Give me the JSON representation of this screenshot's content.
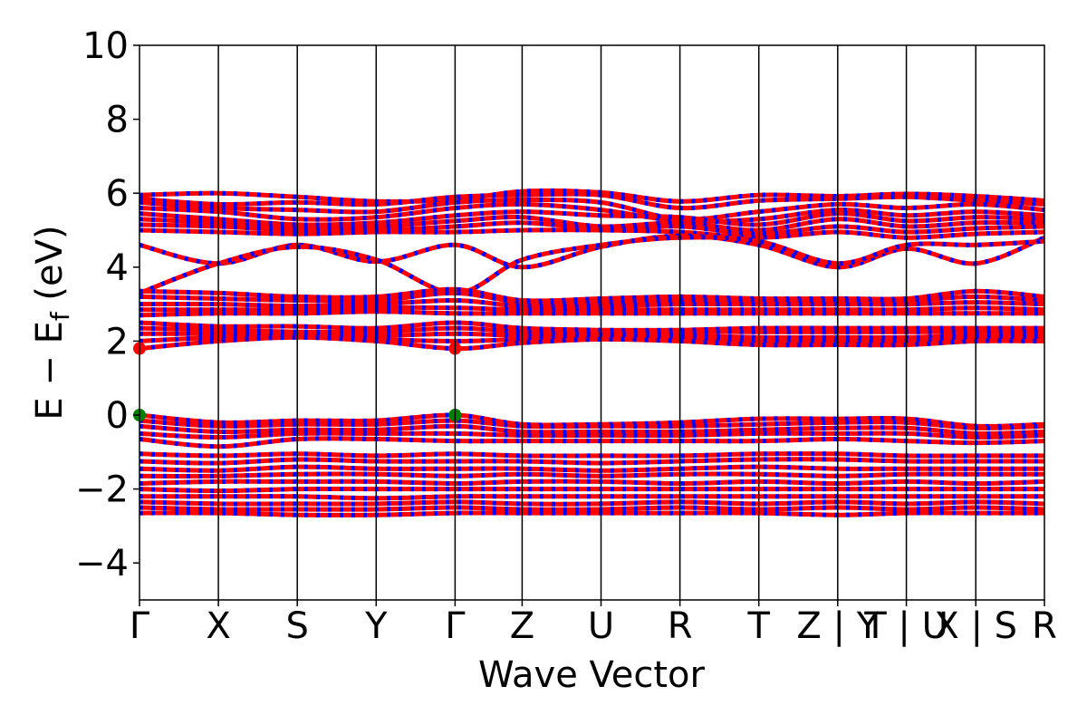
{
  "chart_data": {
    "type": "line",
    "title": "",
    "xlabel": "Wave Vector",
    "ylabel": "E − E",
    "ylabel_sub": "f",
    "ylabel_unit": " (eV)",
    "ylim": [
      -5,
      10
    ],
    "yticks": [
      -4,
      -2,
      0,
      2,
      4,
      6,
      8,
      10
    ],
    "ytick_labels": [
      "−4",
      "−2",
      "0",
      "2",
      "4",
      "6",
      "8",
      "10"
    ],
    "kpath": {
      "positions": [
        0.0,
        1.0,
        2.0,
        3.0,
        4.0,
        4.85,
        5.85,
        6.85,
        7.85,
        8.85,
        9.72,
        10.6,
        11.47
      ],
      "labels": [
        "Γ",
        "X",
        "S",
        "Y",
        "Γ",
        "Z",
        "U",
        "R",
        "T",
        "Z | Y",
        "T | U",
        "X | S",
        "R"
      ]
    },
    "xlim": [
      0.0,
      11.47
    ],
    "grid": false,
    "legend": "none",
    "colors": {
      "spin_up": "#ff0000",
      "spin_down": "#0000ff",
      "vbm_marker": "#008000",
      "cbm_marker": "#ff0000"
    },
    "series_conduction_bands": [
      [
        5.95,
        6.0,
        5.9,
        5.78,
        5.82,
        6.05,
        6.02,
        5.78,
        5.95,
        5.92,
        5.98,
        5.92,
        5.8
      ],
      [
        5.85,
        5.7,
        5.75,
        5.7,
        5.9,
        5.95,
        5.95,
        5.6,
        5.8,
        5.85,
        5.9,
        5.8,
        5.7
      ],
      [
        5.75,
        5.6,
        5.55,
        5.5,
        5.75,
        5.82,
        5.75,
        5.3,
        5.5,
        5.7,
        5.6,
        5.7,
        5.55
      ],
      [
        5.6,
        5.5,
        5.3,
        5.35,
        5.6,
        5.7,
        5.55,
        5.25,
        5.3,
        5.55,
        5.4,
        5.5,
        5.4
      ],
      [
        5.45,
        5.3,
        5.15,
        5.2,
        5.4,
        5.5,
        5.4,
        5.35,
        5.15,
        5.45,
        5.25,
        5.35,
        5.3
      ],
      [
        5.3,
        5.2,
        5.05,
        5.1,
        5.25,
        5.35,
        5.1,
        5.2,
        5.0,
        5.3,
        5.1,
        5.2,
        5.2
      ],
      [
        5.15,
        5.1,
        5.0,
        5.0,
        5.1,
        5.2,
        5.05,
        5.1,
        4.9,
        5.1,
        4.95,
        5.05,
        5.1
      ],
      [
        5.0,
        4.95,
        4.9,
        4.95,
        4.95,
        5.0,
        5.0,
        4.95,
        4.8,
        4.95,
        4.8,
        4.9,
        4.95
      ],
      [
        4.6,
        4.1,
        4.6,
        4.15,
        4.6,
        4.0,
        4.55,
        4.85,
        4.6,
        4.0,
        4.5,
        4.1,
        4.8
      ],
      [
        3.3,
        4.1,
        4.55,
        4.2,
        3.3,
        4.2,
        4.6,
        4.8,
        4.7,
        4.1,
        4.6,
        4.6,
        4.7
      ],
      [
        3.35,
        3.3,
        3.2,
        3.2,
        3.4,
        3.1,
        3.15,
        3.2,
        3.15,
        3.15,
        3.15,
        3.35,
        3.2
      ],
      [
        3.2,
        3.15,
        3.1,
        3.1,
        3.3,
        3.05,
        3.05,
        3.1,
        3.1,
        3.1,
        3.1,
        3.2,
        3.1
      ],
      [
        3.0,
        3.0,
        2.95,
        3.0,
        3.1,
        2.95,
        2.95,
        3.0,
        3.0,
        3.0,
        3.0,
        3.05,
        3.0
      ],
      [
        2.85,
        2.85,
        2.85,
        2.9,
        2.9,
        2.85,
        2.85,
        2.85,
        2.85,
        2.85,
        2.85,
        2.9,
        2.85
      ],
      [
        2.7,
        2.75,
        2.75,
        2.8,
        2.75,
        2.75,
        2.75,
        2.75,
        2.75,
        2.75,
        2.75,
        2.75,
        2.75
      ],
      [
        2.5,
        2.4,
        2.4,
        2.35,
        2.5,
        2.35,
        2.3,
        2.3,
        2.35,
        2.35,
        2.35,
        2.35,
        2.35
      ],
      [
        2.35,
        2.3,
        2.25,
        2.25,
        2.35,
        2.25,
        2.2,
        2.25,
        2.25,
        2.25,
        2.25,
        2.25,
        2.25
      ],
      [
        2.2,
        2.2,
        2.2,
        2.15,
        2.2,
        2.15,
        2.15,
        2.15,
        2.1,
        2.1,
        2.1,
        2.15,
        2.15
      ],
      [
        2.0,
        2.1,
        2.15,
        2.05,
        2.0,
        2.05,
        2.1,
        2.05,
        2.0,
        2.0,
        2.0,
        2.05,
        2.05
      ],
      [
        1.8,
        2.0,
        2.1,
        2.0,
        1.8,
        1.95,
        2.05,
        2.0,
        1.9,
        1.9,
        1.9,
        2.0,
        2.0
      ]
    ],
    "series_valence_bands": [
      [
        0.0,
        -0.2,
        -0.15,
        -0.15,
        0.0,
        -0.25,
        -0.25,
        -0.2,
        -0.1,
        -0.1,
        -0.1,
        -0.3,
        -0.25
      ],
      [
        -0.15,
        -0.3,
        -0.25,
        -0.25,
        -0.15,
        -0.3,
        -0.3,
        -0.3,
        -0.25,
        -0.2,
        -0.2,
        -0.35,
        -0.3
      ],
      [
        -0.3,
        -0.45,
        -0.4,
        -0.4,
        -0.3,
        -0.45,
        -0.45,
        -0.45,
        -0.4,
        -0.35,
        -0.35,
        -0.5,
        -0.45
      ],
      [
        -0.5,
        -0.6,
        -0.5,
        -0.5,
        -0.5,
        -0.55,
        -0.55,
        -0.55,
        -0.5,
        -0.5,
        -0.5,
        -0.6,
        -0.55
      ],
      [
        -0.65,
        -0.85,
        -0.65,
        -0.65,
        -0.7,
        -0.7,
        -0.7,
        -0.7,
        -0.7,
        -0.65,
        -0.7,
        -0.75,
        -0.7
      ],
      [
        -1.05,
        -1.1,
        -1.05,
        -1.1,
        -1.05,
        -1.1,
        -1.1,
        -1.1,
        -1.05,
        -1.05,
        -1.1,
        -1.1,
        -1.1
      ],
      [
        -1.25,
        -1.3,
        -1.2,
        -1.25,
        -1.25,
        -1.25,
        -1.3,
        -1.25,
        -1.2,
        -1.2,
        -1.25,
        -1.25,
        -1.25
      ],
      [
        -1.45,
        -1.5,
        -1.4,
        -1.45,
        -1.45,
        -1.45,
        -1.5,
        -1.45,
        -1.4,
        -1.45,
        -1.45,
        -1.45,
        -1.45
      ],
      [
        -1.65,
        -1.65,
        -1.6,
        -1.6,
        -1.65,
        -1.6,
        -1.65,
        -1.6,
        -1.6,
        -1.65,
        -1.6,
        -1.6,
        -1.6
      ],
      [
        -1.85,
        -1.8,
        -1.8,
        -1.8,
        -1.85,
        -1.8,
        -1.8,
        -1.85,
        -1.8,
        -1.85,
        -1.8,
        -1.85,
        -1.8
      ],
      [
        -2.0,
        -2.05,
        -2.0,
        -2.0,
        -2.0,
        -2.0,
        -2.0,
        -2.0,
        -2.0,
        -2.0,
        -2.0,
        -2.0,
        -2.0
      ],
      [
        -2.2,
        -2.2,
        -2.2,
        -2.25,
        -2.2,
        -2.2,
        -2.2,
        -2.2,
        -2.2,
        -2.2,
        -2.2,
        -2.2,
        -2.2
      ],
      [
        -2.35,
        -2.4,
        -2.4,
        -2.4,
        -2.35,
        -2.4,
        -2.4,
        -2.35,
        -2.4,
        -2.35,
        -2.4,
        -2.35,
        -2.4
      ],
      [
        -2.5,
        -2.55,
        -2.55,
        -2.55,
        -2.5,
        -2.55,
        -2.55,
        -2.5,
        -2.55,
        -2.5,
        -2.55,
        -2.5,
        -2.55
      ],
      [
        -2.65,
        -2.65,
        -2.7,
        -2.7,
        -2.65,
        -2.65,
        -2.65,
        -2.65,
        -2.65,
        -2.7,
        -2.65,
        -2.65,
        -2.65
      ]
    ],
    "markers": [
      {
        "kind": "vbm",
        "x": 0.0,
        "y": 0.0
      },
      {
        "kind": "vbm",
        "x": 4.0,
        "y": 0.0
      },
      {
        "kind": "cbm",
        "x": 0.0,
        "y": 1.8
      },
      {
        "kind": "cbm",
        "x": 4.0,
        "y": 1.8
      }
    ]
  }
}
